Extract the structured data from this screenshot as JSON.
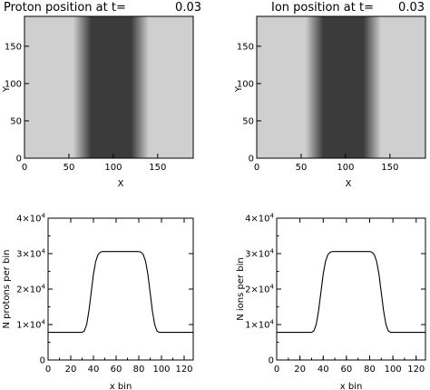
{
  "colors": {
    "axis": "#000000",
    "light_gray": "#cfcfcf",
    "dark_gray": "#3a3a3a",
    "background": "#ffffff"
  },
  "chart_data": [
    {
      "id": "proton-position",
      "type": "heatmap",
      "title_label": "Proton position at t=",
      "title_value": "0.03",
      "xlabel": "X",
      "ylabel": "Y",
      "xlim": [
        0,
        190
      ],
      "ylim": [
        0,
        190
      ],
      "xticks": [
        0,
        50,
        100,
        150
      ],
      "yticks": [
        0,
        50,
        100,
        150
      ],
      "dense_band": {
        "x_start": 65,
        "x_end": 130,
        "edge_width": 10
      }
    },
    {
      "id": "ion-position",
      "type": "heatmap",
      "title_label": "Ion position at t=",
      "title_value": "0.03",
      "xlabel": "X",
      "ylabel": "Y",
      "xlim": [
        0,
        190
      ],
      "ylim": [
        0,
        190
      ],
      "xticks": [
        0,
        50,
        100,
        150
      ],
      "yticks": [
        0,
        50,
        100,
        150
      ],
      "dense_band": {
        "x_start": 65,
        "x_end": 130,
        "edge_width": 10
      }
    },
    {
      "id": "protons-per-bin",
      "type": "line",
      "xlabel": "x bin",
      "ylabel": "N protons per bin",
      "xlim": [
        0,
        128
      ],
      "ylim": [
        0,
        40000
      ],
      "xticks": [
        "0",
        "20",
        "40",
        "60",
        "80",
        "100",
        "120"
      ],
      "yticks": [
        {
          "value": 0,
          "mantissa": "0",
          "exp": ""
        },
        {
          "value": 10000,
          "mantissa": "1×10",
          "exp": "4"
        },
        {
          "value": 20000,
          "mantissa": "2×10",
          "exp": "4"
        },
        {
          "value": 30000,
          "mantissa": "3×10",
          "exp": "4"
        },
        {
          "value": 40000,
          "mantissa": "4×10",
          "exp": "4"
        }
      ],
      "x": [
        0,
        30,
        32,
        34,
        36,
        38,
        40,
        42,
        44,
        46,
        48,
        80,
        82,
        84,
        86,
        88,
        90,
        92,
        94,
        96,
        98,
        128
      ],
      "y": [
        7800,
        7800,
        8200,
        10000,
        13800,
        19000,
        24200,
        27800,
        29700,
        30400,
        30600,
        30600,
        30400,
        29700,
        27800,
        24200,
        19000,
        13800,
        10000,
        8200,
        7800,
        7800
      ]
    },
    {
      "id": "ions-per-bin",
      "type": "line",
      "xlabel": "x bin",
      "ylabel": "N ions per bin",
      "xlim": [
        0,
        128
      ],
      "ylim": [
        0,
        40000
      ],
      "xticks": [
        "0",
        "20",
        "40",
        "60",
        "80",
        "100",
        "120"
      ],
      "yticks": [
        {
          "value": 0,
          "mantissa": "0",
          "exp": ""
        },
        {
          "value": 10000,
          "mantissa": "1×10",
          "exp": "4"
        },
        {
          "value": 20000,
          "mantissa": "2×10",
          "exp": "4"
        },
        {
          "value": 30000,
          "mantissa": "3×10",
          "exp": "4"
        },
        {
          "value": 40000,
          "mantissa": "4×10",
          "exp": "4"
        }
      ],
      "x": [
        0,
        30,
        32,
        34,
        36,
        38,
        40,
        42,
        44,
        46,
        48,
        80,
        82,
        84,
        86,
        88,
        90,
        92,
        94,
        96,
        98,
        128
      ],
      "y": [
        7800,
        7800,
        8200,
        10000,
        13800,
        19000,
        24200,
        27800,
        29700,
        30400,
        30600,
        30600,
        30400,
        29700,
        27800,
        24200,
        19000,
        13800,
        10000,
        8200,
        7800,
        7800
      ]
    }
  ]
}
